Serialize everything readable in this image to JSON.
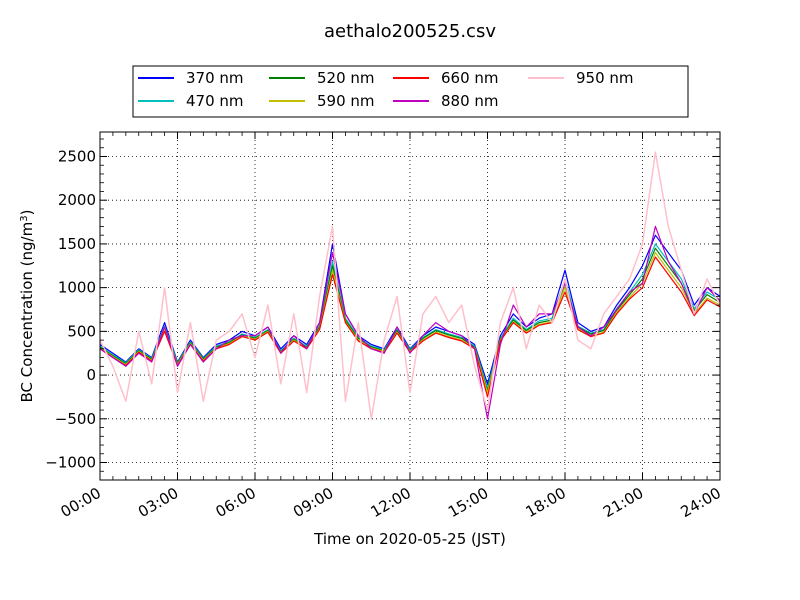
{
  "chart_data": {
    "type": "line",
    "title": "aethalo200525.csv",
    "xlabel": "Time on 2020-05-25 (JST)",
    "ylabel": "BC Concentration (ng/m",
    "ylabel_sup": "3",
    "ylabel_end": ")",
    "x_unit": "hours since 2020-05-25 00:00 JST",
    "xlim": [
      0,
      24
    ],
    "ylim": [
      -1200,
      2780
    ],
    "x_ticks": [
      0,
      3,
      6,
      9,
      12,
      15,
      18,
      21,
      24
    ],
    "x_tick_labels": [
      "00:00",
      "03:00",
      "06:00",
      "09:00",
      "12:00",
      "15:00",
      "18:00",
      "21:00",
      "24:00"
    ],
    "y_ticks": [
      -1000,
      -500,
      0,
      500,
      1000,
      1500,
      2000,
      2500
    ],
    "y_tick_labels": [
      "−1000",
      "−500",
      "0",
      "500",
      "1000",
      "1500",
      "2000",
      "2500"
    ],
    "grid": true,
    "legend_placement": "top-center, above plot, 4 columns",
    "x": [
      0,
      0.5,
      1,
      1.5,
      2,
      2.5,
      3,
      3.5,
      4,
      4.5,
      5,
      5.5,
      6,
      6.5,
      7,
      7.5,
      8,
      8.5,
      9,
      9.5,
      10,
      10.5,
      11,
      11.5,
      12,
      12.5,
      13,
      13.5,
      14,
      14.5,
      15,
      15.5,
      16,
      16.5,
      17,
      17.5,
      18,
      18.5,
      19,
      19.5,
      20,
      20.5,
      21,
      21.5,
      22,
      22.5,
      23,
      23.5,
      24
    ],
    "series": [
      {
        "name": "370 nm",
        "color": "#0000ff",
        "values": [
          350,
          250,
          150,
          300,
          200,
          600,
          150,
          400,
          200,
          350,
          400,
          500,
          450,
          550,
          300,
          450,
          350,
          600,
          1500,
          700,
          450,
          350,
          300,
          550,
          300,
          450,
          550,
          500,
          450,
          350,
          -100,
          450,
          700,
          550,
          650,
          700,
          1200,
          600,
          500,
          550,
          800,
          1000,
          1250,
          1600,
          1400,
          1200,
          800,
          1000,
          900
        ]
      },
      {
        "name": "470 nm",
        "color": "#00bfbf",
        "values": [
          330,
          230,
          140,
          290,
          190,
          560,
          140,
          380,
          190,
          330,
          380,
          470,
          430,
          520,
          280,
          420,
          330,
          560,
          1300,
          650,
          430,
          330,
          290,
          520,
          290,
          430,
          520,
          470,
          430,
          330,
          -150,
          420,
          650,
          520,
          620,
          650,
          1100,
          560,
          480,
          520,
          760,
          950,
          1150,
          1500,
          1300,
          1100,
          760,
          950,
          860
        ]
      },
      {
        "name": "520 nm",
        "color": "#008000",
        "values": [
          320,
          220,
          130,
          280,
          180,
          540,
          130,
          370,
          180,
          320,
          370,
          460,
          420,
          510,
          270,
          410,
          320,
          550,
          1250,
          630,
          420,
          320,
          280,
          510,
          280,
          420,
          510,
          460,
          420,
          320,
          -180,
          410,
          630,
          510,
          600,
          630,
          1050,
          550,
          470,
          510,
          740,
          920,
          1100,
          1450,
          1250,
          1050,
          740,
          920,
          830
        ]
      },
      {
        "name": "590 nm",
        "color": "#bfbf00",
        "values": [
          310,
          210,
          120,
          270,
          170,
          520,
          120,
          360,
          170,
          310,
          360,
          450,
          410,
          500,
          260,
          400,
          310,
          530,
          1200,
          610,
          400,
          310,
          270,
          490,
          270,
          400,
          490,
          440,
          400,
          310,
          -200,
          400,
          610,
          490,
          580,
          610,
          1000,
          530,
          450,
          490,
          720,
          890,
          1050,
          1400,
          1200,
          1000,
          700,
          880,
          800
        ]
      },
      {
        "name": "660 nm",
        "color": "#ff0000",
        "values": [
          300,
          200,
          110,
          260,
          160,
          500,
          110,
          350,
          160,
          300,
          350,
          440,
          400,
          490,
          250,
          390,
          300,
          520,
          1150,
          600,
          390,
          300,
          260,
          480,
          260,
          390,
          480,
          430,
          390,
          300,
          -250,
          390,
          600,
          480,
          570,
          600,
          950,
          520,
          440,
          480,
          700,
          870,
          1000,
          1350,
          1150,
          950,
          680,
          860,
          780
        ]
      },
      {
        "name": "880 nm",
        "color": "#bf00bf",
        "values": [
          300,
          200,
          100,
          250,
          150,
          550,
          100,
          350,
          150,
          300,
          400,
          450,
          450,
          550,
          250,
          450,
          300,
          600,
          1400,
          700,
          450,
          300,
          250,
          550,
          250,
          450,
          600,
          500,
          450,
          300,
          -500,
          350,
          800,
          550,
          700,
          700,
          1050,
          550,
          450,
          550,
          750,
          950,
          1050,
          1700,
          1300,
          1050,
          700,
          1000,
          850
        ]
      },
      {
        "name": "950 nm",
        "color": "#ffc0cb",
        "values": [
          400,
          100,
          -300,
          500,
          -100,
          1000,
          -200,
          600,
          -300,
          400,
          500,
          700,
          200,
          800,
          -100,
          700,
          -200,
          900,
          1700,
          -300,
          600,
          -500,
          400,
          900,
          -200,
          700,
          900,
          600,
          800,
          100,
          -400,
          600,
          1000,
          300,
          800,
          600,
          1100,
          400,
          300,
          700,
          900,
          1100,
          1500,
          2550,
          1700,
          1200,
          700,
          1100,
          800
        ]
      }
    ]
  }
}
